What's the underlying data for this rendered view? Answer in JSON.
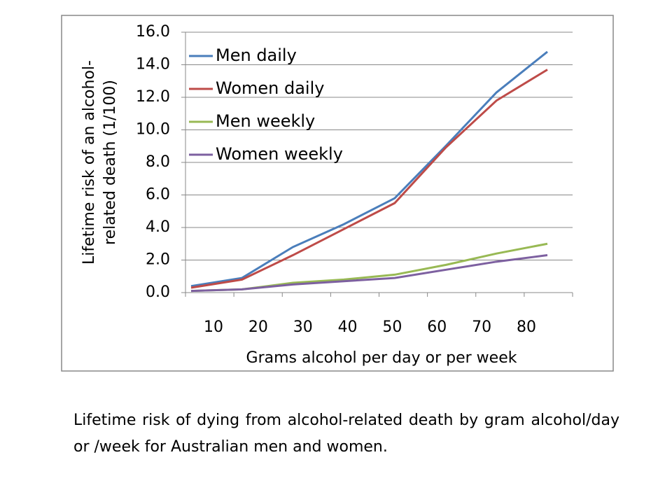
{
  "chart_data": {
    "type": "line",
    "ylabel": [
      "Lifetime risk of an alcohol-",
      "related death (1/100)"
    ],
    "xlabel": "Grams alcohol per day or per week",
    "categories": [
      "10",
      "20",
      "30",
      "40",
      "50",
      "60",
      "70",
      "80"
    ],
    "series": [
      {
        "name": "Men daily",
        "color": "#4a7ebb",
        "values": [
          0.4,
          0.9,
          2.8,
          4.2,
          5.8,
          9.0,
          12.3,
          14.8
        ]
      },
      {
        "name": "Women daily",
        "color": "#be4b48",
        "values": [
          0.3,
          0.8,
          2.3,
          3.9,
          5.5,
          8.9,
          11.8,
          13.7
        ]
      },
      {
        "name": "Men weekly",
        "color": "#98b954",
        "values": [
          0.1,
          0.2,
          0.6,
          0.8,
          1.1,
          1.7,
          2.4,
          3.0
        ]
      },
      {
        "name": "Women weekly",
        "color": "#7d60a0",
        "values": [
          0.1,
          0.2,
          0.5,
          0.7,
          0.9,
          1.4,
          1.9,
          2.3
        ]
      }
    ],
    "ylim": [
      0,
      16
    ],
    "yticks": [
      {
        "value": 0,
        "label": "0.0"
      },
      {
        "value": 2,
        "label": "2.0"
      },
      {
        "value": 4,
        "label": "4.0"
      },
      {
        "value": 6,
        "label": "6.0"
      },
      {
        "value": 8,
        "label": "8.0"
      },
      {
        "value": 10,
        "label": "10.0"
      },
      {
        "value": 12,
        "label": "12.0"
      },
      {
        "value": 14,
        "label": "14.0"
      },
      {
        "value": 16,
        "label": "16.0"
      }
    ],
    "grid": true,
    "legend": "top-left"
  },
  "caption": "Lifetime risk of dying from alcohol-related death by gram alcohol/day or /week for Australian men and women."
}
